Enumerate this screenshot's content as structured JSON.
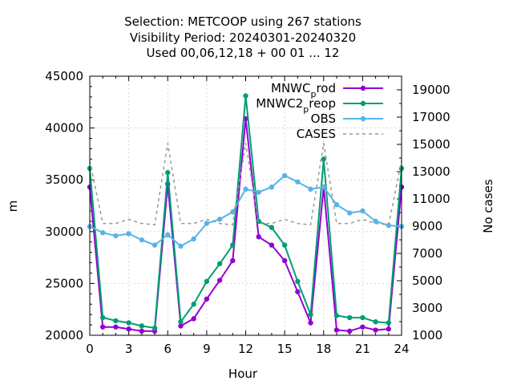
{
  "chart_data": {
    "type": "line",
    "title": [
      "Selection: METCOOP using   267 stations",
      "Visibility   Period: 20240301-20240320",
      "Used  00,06,12,18 + 00 01 ... 12"
    ],
    "xlabel": "Hour",
    "ylabel": "m",
    "y2label": "No cases",
    "xlim": [
      0,
      24
    ],
    "ylim": [
      20000,
      45000
    ],
    "y2lim": [
      1000,
      20000
    ],
    "xticks": [
      "0",
      "3",
      "6",
      "9",
      "12",
      "15",
      "18",
      "21",
      "24"
    ],
    "yticks": [
      "20000",
      "25000",
      "30000",
      "35000",
      "40000",
      "45000"
    ],
    "y2ticks": [
      "1000",
      "3000",
      "5000",
      "7000",
      "9000",
      "11000",
      "13000",
      "15000",
      "17000",
      "19000"
    ],
    "legend_position": "top-right",
    "grid": true,
    "x": [
      0,
      1,
      2,
      3,
      4,
      5,
      6,
      7,
      8,
      9,
      10,
      11,
      12,
      13,
      14,
      15,
      16,
      17,
      18,
      19,
      20,
      21,
      22,
      23,
      24
    ],
    "series": [
      {
        "name": "MNWC_prod",
        "legend_main": "MNWC",
        "legend_sub": "p",
        "legend_tail": "rod",
        "axis": "y",
        "color": "#9400d3",
        "marker": "filled-circle",
        "values": [
          34300,
          20800,
          20800,
          20600,
          20400,
          20400,
          34600,
          20900,
          21600,
          23500,
          25300,
          27200,
          40900,
          29500,
          28700,
          27200,
          24200,
          21200,
          34300,
          20500,
          20400,
          20800,
          20500,
          20600,
          34300
        ]
      },
      {
        "name": "MNWC2_preop",
        "legend_main": "MNWC2",
        "legend_sub": "p",
        "legend_tail": "reop",
        "axis": "y",
        "color": "#009e73",
        "marker": "filled-circle",
        "values": [
          36100,
          21700,
          21400,
          21200,
          20900,
          20700,
          35700,
          21300,
          23000,
          25200,
          26900,
          28700,
          43100,
          31000,
          30400,
          28700,
          25200,
          22000,
          37000,
          21900,
          21700,
          21700,
          21300,
          21200,
          36100
        ]
      },
      {
        "name": "OBS",
        "legend_main": "OBS",
        "axis": "y",
        "color": "#56b4e9",
        "marker": "filled-circle",
        "values": [
          30500,
          29900,
          29600,
          29800,
          29200,
          28700,
          29700,
          28600,
          29300,
          30800,
          31200,
          31900,
          34100,
          33800,
          34300,
          35400,
          34800,
          34100,
          34300,
          32600,
          31800,
          32000,
          31000,
          30600,
          30500
        ]
      },
      {
        "name": "CASES",
        "legend_main": "CASES",
        "axis": "y2",
        "color": "#999999",
        "dashed": true,
        "values": [
          13800,
          9200,
          9200,
          9500,
          9200,
          9100,
          15100,
          9200,
          9200,
          9500,
          9200,
          9100,
          15100,
          9200,
          9200,
          9500,
          9200,
          9100,
          15100,
          9200,
          9200,
          9500,
          9200,
          9100,
          13800
        ]
      }
    ]
  }
}
